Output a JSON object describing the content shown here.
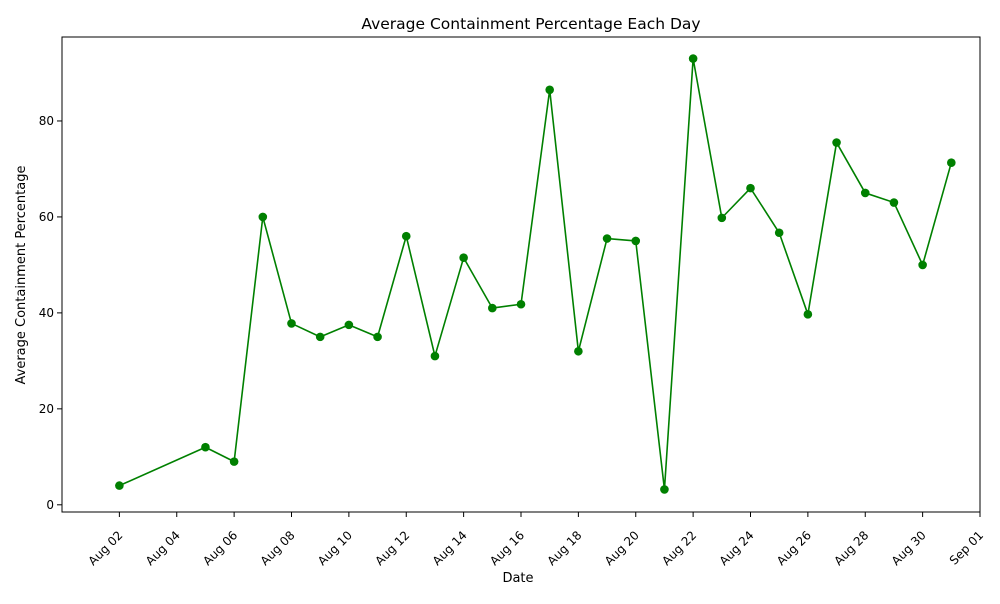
{
  "chart_data": {
    "type": "line",
    "title": "Average Containment Percentage Each Day",
    "xlabel": "Date",
    "ylabel": "Average Containment Percentage",
    "x_range": [
      "2024-07-31",
      "2024-09-01"
    ],
    "ylim": [
      -1.5,
      97.5
    ],
    "y_ticks": [
      0,
      20,
      40,
      60,
      80
    ],
    "x_ticks": [
      {
        "date": "2024-08-02",
        "label": "Aug 02"
      },
      {
        "date": "2024-08-04",
        "label": "Aug 04"
      },
      {
        "date": "2024-08-06",
        "label": "Aug 06"
      },
      {
        "date": "2024-08-08",
        "label": "Aug 08"
      },
      {
        "date": "2024-08-10",
        "label": "Aug 10"
      },
      {
        "date": "2024-08-12",
        "label": "Aug 12"
      },
      {
        "date": "2024-08-14",
        "label": "Aug 14"
      },
      {
        "date": "2024-08-16",
        "label": "Aug 16"
      },
      {
        "date": "2024-08-18",
        "label": "Aug 18"
      },
      {
        "date": "2024-08-20",
        "label": "Aug 20"
      },
      {
        "date": "2024-08-22",
        "label": "Aug 22"
      },
      {
        "date": "2024-08-24",
        "label": "Aug 24"
      },
      {
        "date": "2024-08-26",
        "label": "Aug 26"
      },
      {
        "date": "2024-08-28",
        "label": "Aug 28"
      },
      {
        "date": "2024-08-30",
        "label": "Aug 30"
      },
      {
        "date": "2024-09-01",
        "label": "Sep 01"
      }
    ],
    "grid": false,
    "line_color": "#008000",
    "series": [
      {
        "x": [
          "2024-08-02",
          "2024-08-05",
          "2024-08-06",
          "2024-08-07",
          "2024-08-08",
          "2024-08-09",
          "2024-08-10",
          "2024-08-11",
          "2024-08-12",
          "2024-08-13",
          "2024-08-14",
          "2024-08-15",
          "2024-08-16",
          "2024-08-17",
          "2024-08-18",
          "2024-08-19",
          "2024-08-20",
          "2024-08-21",
          "2024-08-22",
          "2024-08-23",
          "2024-08-24",
          "2024-08-25",
          "2024-08-26",
          "2024-08-27",
          "2024-08-28",
          "2024-08-29",
          "2024-08-30",
          "2024-08-31"
        ],
        "values": [
          4,
          12,
          9,
          60,
          37.8,
          35,
          37.5,
          35,
          56,
          31,
          51.5,
          41,
          41.8,
          86.5,
          32,
          55.5,
          55,
          3.2,
          93,
          59.8,
          66,
          56.7,
          39.7,
          75.5,
          65,
          63,
          50,
          71.3
        ]
      }
    ]
  }
}
